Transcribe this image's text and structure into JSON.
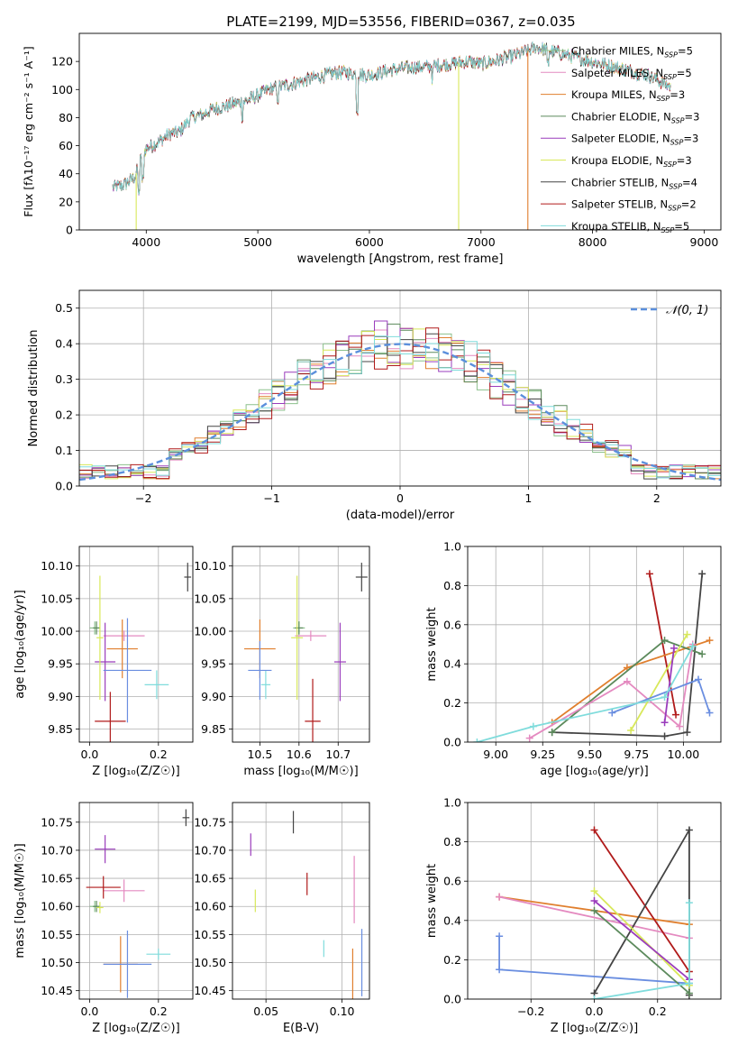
{
  "title": "PLATE=2199, MJD=53556, FIBERID=0367, z=0.035",
  "colors": {
    "Chabrier MILES": "#8cc08c",
    "Salpeter MILES": "#e48ac0",
    "Kroupa MILES": "#e07f2e",
    "Chabrier ELODIE": "#5c8a5c",
    "Salpeter ELODIE": "#9a3cbc",
    "Kroupa ELODIE": "#d8e85a",
    "Chabrier STELIB": "#444444",
    "Salpeter STELIB": "#b01a1a",
    "Kroupa STELIB": "#7fdcdc",
    "Salpeter STELIB (weights)": "#b01a1a",
    "Kroupa blue": "#6a8ee0",
    "normal": "#5b8fdc"
  },
  "chart_data": [
    {
      "id": "spectrum",
      "type": "line",
      "title": "PLATE=2199, MJD=53556, FIBERID=0367, z=0.035",
      "xlabel": "wavelength [Angstrom, rest frame]",
      "ylabel": "Flux [fλ10⁻¹⁷ erg cm⁻² s⁻¹ A⁻¹]",
      "xlim": [
        3400,
        9150
      ],
      "ylim": [
        0,
        140
      ],
      "xticks": [
        4000,
        5000,
        6000,
        7000,
        8000,
        9000
      ],
      "yticks": [
        0,
        20,
        40,
        60,
        80,
        100,
        120
      ],
      "legend_position": "upper-right",
      "continuum": [
        [
          3700,
          30
        ],
        [
          3800,
          32
        ],
        [
          3900,
          38
        ],
        [
          3950,
          50
        ],
        [
          4000,
          58
        ],
        [
          4100,
          62
        ],
        [
          4200,
          68
        ],
        [
          4300,
          70
        ],
        [
          4400,
          80
        ],
        [
          4500,
          82
        ],
        [
          4600,
          86
        ],
        [
          4700,
          88
        ],
        [
          4800,
          90
        ],
        [
          4900,
          92
        ],
        [
          5000,
          96
        ],
        [
          5100,
          100
        ],
        [
          5200,
          102
        ],
        [
          5300,
          104
        ],
        [
          5400,
          106
        ],
        [
          5500,
          108
        ],
        [
          5600,
          110
        ],
        [
          5700,
          112
        ],
        [
          5800,
          112
        ],
        [
          5900,
          111
        ],
        [
          6000,
          110
        ],
        [
          6100,
          112
        ],
        [
          6200,
          114
        ],
        [
          6300,
          115
        ],
        [
          6400,
          116
        ],
        [
          6500,
          116
        ],
        [
          6600,
          117
        ],
        [
          6700,
          118
        ],
        [
          6800,
          119
        ],
        [
          6900,
          120
        ],
        [
          7000,
          118
        ],
        [
          7100,
          120
        ],
        [
          7200,
          122
        ],
        [
          7300,
          124
        ],
        [
          7400,
          127
        ],
        [
          7500,
          130
        ],
        [
          7600,
          128
        ],
        [
          7700,
          126
        ],
        [
          7800,
          124
        ],
        [
          7900,
          122
        ],
        [
          8000,
          120
        ],
        [
          8100,
          118
        ],
        [
          8200,
          116
        ],
        [
          8300,
          114
        ],
        [
          8400,
          112
        ],
        [
          8500,
          110
        ],
        [
          8600,
          106
        ],
        [
          8700,
          102
        ]
      ],
      "series": [
        {
          "name": "Chabrier MILES, N_SSP=5",
          "label_main": "Chabrier MILES, N",
          "label_sub": "SSP",
          "label_tail": "=5",
          "color_key": "Chabrier MILES"
        },
        {
          "name": "Salpeter MILES, N_SSP=5",
          "label_main": "Salpeter MILES, N",
          "label_sub": "SSP",
          "label_tail": "=5",
          "color_key": "Salpeter MILES"
        },
        {
          "name": "Kroupa MILES, N_SSP=3",
          "label_main": "Kroupa MILES, N",
          "label_sub": "SSP",
          "label_tail": "=3",
          "color_key": "Kroupa MILES"
        },
        {
          "name": "Chabrier ELODIE, N_SSP=3",
          "label_main": "Chabrier ELODIE, N",
          "label_sub": "SSP",
          "label_tail": "=3",
          "color_key": "Chabrier ELODIE"
        },
        {
          "name": "Salpeter ELODIE, N_SSP=3",
          "label_main": "Salpeter ELODIE, N",
          "label_sub": "SSP",
          "label_tail": "=3",
          "color_key": "Salpeter ELODIE"
        },
        {
          "name": "Kroupa ELODIE, N_SSP=3",
          "label_main": "Kroupa ELODIE, N",
          "label_sub": "SSP",
          "label_tail": "=3",
          "color_key": "Kroupa ELODIE"
        },
        {
          "name": "Chabrier STELIB, N_SSP=4",
          "label_main": "Chabrier STELIB, N",
          "label_sub": "SSP",
          "label_tail": "=4",
          "color_key": "Chabrier STELIB"
        },
        {
          "name": "Salpeter STELIB, N_SSP=2",
          "label_main": "Salpeter STELIB, N",
          "label_sub": "SSP",
          "label_tail": "=2",
          "color_key": "Salpeter STELIB"
        },
        {
          "name": "Kroupa STELIB, N_SSP=5",
          "label_main": "Kroupa STELIB, N",
          "label_sub": "SSP",
          "label_tail": "=5",
          "color_key": "Kroupa STELIB"
        }
      ],
      "drops": [
        [
          3910,
          "Kroupa ELODIE"
        ],
        [
          6800,
          "Kroupa ELODIE"
        ],
        [
          7420,
          "Kroupa MILES"
        ]
      ]
    },
    {
      "id": "residuals",
      "type": "histogram",
      "xlabel": "(data-model)/error",
      "ylabel": "Normed distribution",
      "xlim": [
        -2.5,
        2.5
      ],
      "ylim": [
        0,
        0.55
      ],
      "xticks": [
        -2,
        -1,
        0,
        1,
        2
      ],
      "yticks": [
        0.0,
        0.1,
        0.2,
        0.3,
        0.4,
        0.5
      ],
      "legend": "𝒩(0, 1)",
      "bin_width": 0.1
    },
    {
      "id": "age_vs_Z",
      "type": "errorbar",
      "xlabel": "Z [log₁₀(Z/Z☉)]",
      "ylabel": "age  [log₁₀(age/yr)]",
      "xlim": [
        -0.03,
        0.3
      ],
      "ylim": [
        9.83,
        10.13
      ],
      "xticks": [
        0.0,
        0.2
      ],
      "yticks": [
        9.85,
        9.9,
        9.95,
        10.0,
        10.05,
        10.1
      ],
      "points": [
        {
          "c": "Chabrier MILES",
          "x": 0.015,
          "y": 10.005,
          "ex": 0.015,
          "ey": 0.01
        },
        {
          "c": "Salpeter MILES",
          "x": 0.1,
          "y": 9.993,
          "ex": 0.06,
          "ey": 0.008
        },
        {
          "c": "Kroupa MILES",
          "x": 0.095,
          "y": 9.973,
          "ex": 0.045,
          "ey": 0.045
        },
        {
          "c": "Chabrier ELODIE",
          "x": 0.02,
          "y": 10.005,
          "ex": 0.01,
          "ey": 0.01
        },
        {
          "c": "Salpeter ELODIE",
          "x": 0.045,
          "y": 9.953,
          "ex": 0.03,
          "ey": 0.06
        },
        {
          "c": "Kroupa ELODIE",
          "x": 0.03,
          "y": 9.99,
          "ex": 0.01,
          "ey": 0.095
        },
        {
          "c": "Chabrier STELIB",
          "x": 0.285,
          "y": 10.083,
          "ex": 0.01,
          "ey": 0.022
        },
        {
          "c": "Salpeter STELIB",
          "x": 0.06,
          "y": 9.862,
          "ex": 0.045,
          "ey": 0.045
        },
        {
          "c": "Kroupa STELIB",
          "x": 0.195,
          "y": 9.918,
          "ex": 0.035,
          "ey": 0.022
        },
        {
          "c": "Kroupa blue",
          "x": 0.11,
          "y": 9.94,
          "ex": 0.07,
          "ey": 0.08
        }
      ]
    },
    {
      "id": "age_vs_mass",
      "type": "errorbar",
      "xlabel": "mass [log₁₀(M/M☉)]",
      "ylabel": "",
      "xlim": [
        10.43,
        10.78
      ],
      "ylim": [
        9.83,
        10.13
      ],
      "xticks": [
        10.5,
        10.6,
        10.7
      ],
      "yticks": [
        9.85,
        9.9,
        9.95,
        10.0,
        10.05,
        10.1
      ],
      "points": [
        {
          "c": "Chabrier MILES",
          "x": 10.6,
          "y": 10.005,
          "ex": 0.015,
          "ey": 0.01
        },
        {
          "c": "Salpeter MILES",
          "x": 10.63,
          "y": 9.993,
          "ex": 0.04,
          "ey": 0.008
        },
        {
          "c": "Kroupa MILES",
          "x": 10.5,
          "y": 9.973,
          "ex": 0.04,
          "ey": 0.045
        },
        {
          "c": "Chabrier ELODIE",
          "x": 10.6,
          "y": 10.005,
          "ex": 0.01,
          "ey": 0.01
        },
        {
          "c": "Salpeter ELODIE",
          "x": 10.705,
          "y": 9.953,
          "ex": 0.015,
          "ey": 0.06
        },
        {
          "c": "Kroupa ELODIE",
          "x": 10.595,
          "y": 9.99,
          "ex": 0.015,
          "ey": 0.095
        },
        {
          "c": "Chabrier STELIB",
          "x": 10.76,
          "y": 10.083,
          "ex": 0.015,
          "ey": 0.022
        },
        {
          "c": "Salpeter STELIB",
          "x": 10.635,
          "y": 9.862,
          "ex": 0.02,
          "ey": 0.065
        },
        {
          "c": "Kroupa STELIB",
          "x": 10.515,
          "y": 9.918,
          "ex": 0.012,
          "ey": 0.022
        },
        {
          "c": "Kroupa blue",
          "x": 10.5,
          "y": 9.94,
          "ex": 0.03,
          "ey": 0.045
        }
      ]
    },
    {
      "id": "weight_vs_age",
      "type": "line",
      "xlabel": "age  [log₁₀(age/yr)]",
      "ylabel": "mass weight",
      "xlim": [
        8.85,
        10.2
      ],
      "ylim": [
        0,
        1
      ],
      "xticks": [
        9.0,
        9.25,
        9.5,
        9.75,
        10.0
      ],
      "xticklabels": [
        "9.00",
        "9.25",
        "9.50",
        "9.75",
        "10.00"
      ],
      "yticks": [
        0.0,
        0.2,
        0.4,
        0.6,
        0.8,
        1.0
      ],
      "series": [
        {
          "c": "Chabrier STELIB",
          "pts": [
            [
              9.3,
              0.05
            ],
            [
              9.9,
              0.03
            ],
            [
              10.02,
              0.05
            ],
            [
              10.1,
              0.86
            ]
          ]
        },
        {
          "c": "Salpeter STELIB",
          "pts": [
            [
              9.82,
              0.86
            ],
            [
              9.96,
              0.14
            ]
          ]
        },
        {
          "c": "Kroupa MILES",
          "pts": [
            [
              9.3,
              0.1
            ],
            [
              9.7,
              0.38
            ],
            [
              10.14,
              0.52
            ]
          ]
        },
        {
          "c": "Chabrier ELODIE",
          "pts": [
            [
              9.3,
              0.05
            ],
            [
              9.9,
              0.52
            ],
            [
              10.1,
              0.45
            ]
          ]
        },
        {
          "c": "Salpeter MILES",
          "pts": [
            [
              9.18,
              0.02
            ],
            [
              9.7,
              0.31
            ],
            [
              9.98,
              0.08
            ],
            [
              10.05,
              0.5
            ]
          ]
        },
        {
          "c": "Kroupa ELODIE",
          "pts": [
            [
              9.72,
              0.06
            ],
            [
              10.02,
              0.55
            ]
          ]
        },
        {
          "c": "Salpeter ELODIE",
          "pts": [
            [
              9.9,
              0.1
            ],
            [
              9.95,
              0.48
            ]
          ]
        },
        {
          "c": "Kroupa blue",
          "pts": [
            [
              9.62,
              0.15
            ],
            [
              10.08,
              0.32
            ],
            [
              10.14,
              0.15
            ]
          ]
        },
        {
          "c": "Kroupa STELIB",
          "pts": [
            [
              8.9,
              0.0
            ],
            [
              9.2,
              0.08
            ],
            [
              9.9,
              0.23
            ],
            [
              10.05,
              0.49
            ]
          ]
        }
      ]
    },
    {
      "id": "mass_vs_Z",
      "type": "errorbar",
      "xlabel": "Z [log₁₀(Z/Z☉)]",
      "ylabel": "mass [log₁₀(M/M☉)]",
      "xlim": [
        -0.03,
        0.3
      ],
      "ylim": [
        10.435,
        10.785
      ],
      "xticks": [
        0.0,
        0.2
      ],
      "yticks": [
        10.45,
        10.5,
        10.55,
        10.6,
        10.65,
        10.7,
        10.75
      ],
      "points": [
        {
          "c": "Chabrier MILES",
          "x": 0.015,
          "y": 10.6,
          "ex": 0.015,
          "ey": 0.01
        },
        {
          "c": "Salpeter MILES",
          "x": 0.1,
          "y": 10.628,
          "ex": 0.06,
          "ey": 0.02
        },
        {
          "c": "Kroupa MILES",
          "x": 0.09,
          "y": 10.497,
          "ex": 0.05,
          "ey": 0.05
        },
        {
          "c": "Chabrier ELODIE",
          "x": 0.02,
          "y": 10.6,
          "ex": 0.01,
          "ey": 0.01
        },
        {
          "c": "Salpeter ELODIE",
          "x": 0.045,
          "y": 10.702,
          "ex": 0.03,
          "ey": 0.025
        },
        {
          "c": "Kroupa ELODIE",
          "x": 0.03,
          "y": 10.598,
          "ex": 0.01,
          "ey": 0.01
        },
        {
          "c": "Chabrier STELIB",
          "x": 0.28,
          "y": 10.758,
          "ex": 0.01,
          "ey": 0.015
        },
        {
          "c": "Salpeter STELIB",
          "x": 0.04,
          "y": 10.634,
          "ex": 0.05,
          "ey": 0.02
        },
        {
          "c": "Kroupa STELIB",
          "x": 0.2,
          "y": 10.515,
          "ex": 0.035,
          "ey": 0.01
        },
        {
          "c": "Kroupa blue",
          "x": 0.11,
          "y": 10.497,
          "ex": 0.07,
          "ey": 0.06
        }
      ]
    },
    {
      "id": "mass_vs_ebv",
      "type": "errorbar",
      "xlabel": "E(B-V)",
      "ylabel": "",
      "xlim": [
        0.028,
        0.118
      ],
      "ylim": [
        10.435,
        10.785
      ],
      "xticks": [
        0.05,
        0.1
      ],
      "xticklabels": [
        "0.05",
        "0.10"
      ],
      "yticks": [
        10.45,
        10.5,
        10.55,
        10.6,
        10.65,
        10.7,
        10.75
      ],
      "points": [
        {
          "c": "Salpeter ELODIE",
          "x": 0.04,
          "y": 10.71,
          "ex": 0,
          "ey": 0.02
        },
        {
          "c": "Kroupa ELODIE",
          "x": 0.043,
          "y": 10.61,
          "ex": 0,
          "ey": 0.02
        },
        {
          "c": "Chabrier STELIB",
          "x": 0.068,
          "y": 10.75,
          "ex": 0,
          "ey": 0.02
        },
        {
          "c": "Salpeter STELIB",
          "x": 0.077,
          "y": 10.64,
          "ex": 0,
          "ey": 0.02
        },
        {
          "c": "Kroupa STELIB",
          "x": 0.088,
          "y": 10.525,
          "ex": 0,
          "ey": 0.015
        },
        {
          "c": "Kroupa MILES",
          "x": 0.107,
          "y": 10.48,
          "ex": 0,
          "ey": 0.045
        },
        {
          "c": "Salpeter MILES",
          "x": 0.108,
          "y": 10.63,
          "ex": 0,
          "ey": 0.06
        },
        {
          "c": "Kroupa blue",
          "x": 0.113,
          "y": 10.5,
          "ex": 0,
          "ey": 0.06
        }
      ]
    },
    {
      "id": "weight_vs_Z",
      "type": "line",
      "xlabel": "Z [log₁₀(Z/Z☉)]",
      "ylabel": "mass weight",
      "xlim": [
        -0.4,
        0.4
      ],
      "ylim": [
        0,
        1
      ],
      "xticks": [
        -0.2,
        0.0,
        0.2
      ],
      "xticklabels": [
        "−0.2",
        "0.0",
        "0.2"
      ],
      "yticks": [
        0.0,
        0.2,
        0.4,
        0.6,
        0.8,
        1.0
      ],
      "series": [
        {
          "c": "Kroupa MILES",
          "pts": [
            [
              -0.3,
              0.52
            ],
            [
              0.3,
              0.38
            ]
          ]
        },
        {
          "c": "Salpeter MILES",
          "pts": [
            [
              -0.3,
              0.52
            ],
            [
              0.3,
              0.31
            ]
          ]
        },
        {
          "c": "Kroupa blue",
          "pts": [
            [
              -0.3,
              0.32
            ],
            [
              -0.3,
              0.15
            ],
            [
              0.3,
              0.08
            ]
          ]
        },
        {
          "c": "Salpeter STELIB",
          "pts": [
            [
              0.0,
              0.86
            ],
            [
              0.3,
              0.14
            ]
          ]
        },
        {
          "c": "Chabrier STELIB",
          "pts": [
            [
              0.0,
              0.03
            ],
            [
              0.3,
              0.86
            ],
            [
              0.3,
              0.02
            ]
          ]
        },
        {
          "c": "Kroupa ELODIE",
          "pts": [
            [
              0.0,
              0.55
            ],
            [
              0.3,
              0.07
            ]
          ]
        },
        {
          "c": "Salpeter ELODIE",
          "pts": [
            [
              0.0,
              0.5
            ],
            [
              0.3,
              0.1
            ]
          ]
        },
        {
          "c": "Chabrier ELODIE",
          "pts": [
            [
              0.0,
              0.45
            ],
            [
              0.3,
              0.03
            ]
          ]
        },
        {
          "c": "Kroupa STELIB",
          "pts": [
            [
              0.0,
              0.0
            ],
            [
              0.3,
              0.08
            ],
            [
              0.3,
              0.49
            ]
          ]
        }
      ]
    }
  ]
}
